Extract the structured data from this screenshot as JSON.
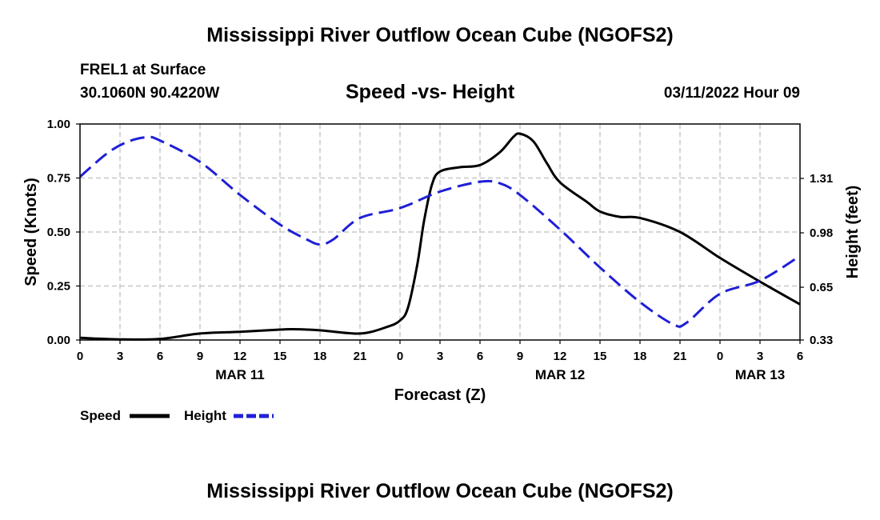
{
  "page_title": "Mississippi River Outflow Ocean Cube (NGOFS2)",
  "footer_title": "Mississippi River Outflow Ocean Cube (NGOFS2)",
  "station": "FREL1 at Surface",
  "coordinates": "30.1060N  90.4220W",
  "datetime": "03/11/2022 Hour 09",
  "colors": {
    "speed": "#000000",
    "height": "#1f1fd6",
    "grid": "#c8c8c8"
  },
  "chart_data": {
    "type": "line",
    "title": "Speed -vs- Height",
    "xlabel": "Forecast (Z)",
    "ylabel": "Speed (Knots)",
    "y2label": "Height (feet)",
    "x_hours_range": [
      0,
      54
    ],
    "ylim": [
      0,
      1
    ],
    "y2lim": [
      0.33,
      1.64
    ],
    "x_ticks": [
      {
        "h": 0,
        "label": "0"
      },
      {
        "h": 3,
        "label": "3"
      },
      {
        "h": 6,
        "label": "6"
      },
      {
        "h": 9,
        "label": "9"
      },
      {
        "h": 12,
        "label": "12"
      },
      {
        "h": 15,
        "label": "15"
      },
      {
        "h": 18,
        "label": "18"
      },
      {
        "h": 21,
        "label": "21"
      },
      {
        "h": 24,
        "label": "0"
      },
      {
        "h": 27,
        "label": "3"
      },
      {
        "h": 30,
        "label": "6"
      },
      {
        "h": 33,
        "label": "9"
      },
      {
        "h": 36,
        "label": "12"
      },
      {
        "h": 39,
        "label": "15"
      },
      {
        "h": 42,
        "label": "18"
      },
      {
        "h": 45,
        "label": "21"
      },
      {
        "h": 48,
        "label": "0"
      },
      {
        "h": 51,
        "label": "3"
      },
      {
        "h": 54,
        "label": "6"
      }
    ],
    "date_labels": [
      {
        "h": 12,
        "label": "MAR 11"
      },
      {
        "h": 36,
        "label": "MAR 12"
      },
      {
        "h": 51,
        "label": "MAR 13"
      }
    ],
    "y_ticks": [
      {
        "v": 0.0,
        "label": "0.00"
      },
      {
        "v": 0.25,
        "label": "0.25"
      },
      {
        "v": 0.5,
        "label": "0.50"
      },
      {
        "v": 0.75,
        "label": "0.75"
      },
      {
        "v": 1.0,
        "label": "1.00"
      }
    ],
    "y2_ticks": [
      {
        "v": 0.33,
        "label": "0.33"
      },
      {
        "v": 0.65,
        "label": "0.65"
      },
      {
        "v": 0.98,
        "label": "0.98"
      },
      {
        "v": 1.31,
        "label": "1.31"
      }
    ],
    "series": [
      {
        "name": "Speed",
        "axis": "left",
        "dash": false,
        "points": [
          [
            0,
            0.01
          ],
          [
            3,
            0.003
          ],
          [
            6,
            0.005
          ],
          [
            9,
            0.03
          ],
          [
            12,
            0.038
          ],
          [
            15,
            0.048
          ],
          [
            16,
            0.05
          ],
          [
            18,
            0.045
          ],
          [
            21,
            0.03
          ],
          [
            23,
            0.06
          ],
          [
            24,
            0.09
          ],
          [
            24.6,
            0.15
          ],
          [
            25.3,
            0.35
          ],
          [
            25.8,
            0.55
          ],
          [
            26.4,
            0.72
          ],
          [
            27,
            0.78
          ],
          [
            28.5,
            0.8
          ],
          [
            30,
            0.81
          ],
          [
            31.5,
            0.87
          ],
          [
            32.5,
            0.94
          ],
          [
            33,
            0.955
          ],
          [
            34,
            0.92
          ],
          [
            35,
            0.82
          ],
          [
            36,
            0.73
          ],
          [
            38,
            0.64
          ],
          [
            39,
            0.595
          ],
          [
            40.5,
            0.57
          ],
          [
            42,
            0.565
          ],
          [
            45,
            0.5
          ],
          [
            48,
            0.38
          ],
          [
            51,
            0.27
          ],
          [
            54,
            0.165
          ]
        ]
      },
      {
        "name": "Height",
        "axis": "right",
        "dash": true,
        "points": [
          [
            0,
            1.32
          ],
          [
            2,
            1.46
          ],
          [
            3.5,
            1.53
          ],
          [
            5,
            1.56
          ],
          [
            6,
            1.54
          ],
          [
            9,
            1.41
          ],
          [
            12,
            1.21
          ],
          [
            15,
            1.03
          ],
          [
            17,
            0.94
          ],
          [
            18,
            0.91
          ],
          [
            19,
            0.94
          ],
          [
            21,
            1.07
          ],
          [
            24,
            1.13
          ],
          [
            27,
            1.23
          ],
          [
            30,
            1.29
          ],
          [
            31.5,
            1.28
          ],
          [
            33,
            1.21
          ],
          [
            36,
            1.0
          ],
          [
            39,
            0.77
          ],
          [
            42,
            0.56
          ],
          [
            44.5,
            0.425
          ],
          [
            45.5,
            0.435
          ],
          [
            48,
            0.61
          ],
          [
            51,
            0.69
          ],
          [
            54,
            0.84
          ]
        ]
      }
    ]
  },
  "legend": {
    "speed_label": "Speed",
    "height_label": "Height"
  }
}
